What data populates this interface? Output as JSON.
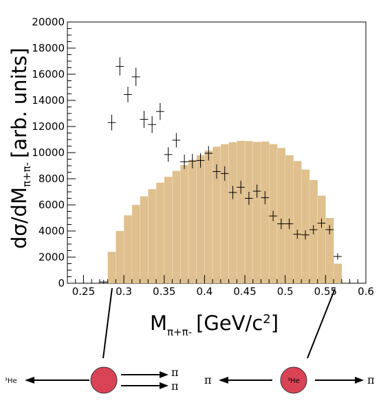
{
  "chart_data": {
    "type": "bar",
    "ylabel_main": "dσ/dM",
    "ylabel_sub": "π+π-",
    "ylabel_units": "[arb. units]",
    "xlabel_main": "M",
    "xlabel_sub": "π+π-",
    "xlabel_units": "[GeV/c",
    "xlabel_units_sup": "2",
    "xlabel_units_close": "]",
    "xlim": [
      0.23,
      0.6
    ],
    "ylim": [
      0,
      20000
    ],
    "x_ticks": [
      "0.25",
      "0.3",
      "0.35",
      "0.4",
      "0.45",
      "0.5",
      "0.55",
      "0.6"
    ],
    "y_ticks": [
      "0",
      "2000",
      "4000",
      "6000",
      "8000",
      "10000",
      "12000",
      "14000",
      "16000",
      "18000",
      "20000"
    ],
    "grid": false,
    "series": [
      {
        "kind": "histogram",
        "color": "#dfc08e",
        "bin_width": 0.01,
        "bin_lefts": [
          0.28,
          0.29,
          0.3,
          0.31,
          0.32,
          0.33,
          0.34,
          0.35,
          0.36,
          0.37,
          0.38,
          0.39,
          0.4,
          0.41,
          0.42,
          0.43,
          0.44,
          0.45,
          0.46,
          0.47,
          0.48,
          0.49,
          0.5,
          0.51,
          0.52,
          0.53,
          0.54,
          0.55,
          0.56
        ],
        "values": [
          2400,
          4000,
          5200,
          6000,
          6650,
          7200,
          7700,
          8150,
          8600,
          9050,
          9450,
          9800,
          10150,
          10450,
          10650,
          10800,
          10900,
          10880,
          10820,
          10850,
          10650,
          10350,
          9800,
          9350,
          8700,
          7900,
          6700,
          5000,
          1500
        ]
      },
      {
        "kind": "points_with_errors",
        "color": "#000000",
        "x": [
          0.275,
          0.285,
          0.295,
          0.305,
          0.315,
          0.325,
          0.335,
          0.345,
          0.355,
          0.365,
          0.375,
          0.385,
          0.395,
          0.405,
          0.415,
          0.425,
          0.435,
          0.445,
          0.455,
          0.465,
          0.475,
          0.485,
          0.495,
          0.505,
          0.515,
          0.525,
          0.535,
          0.545,
          0.555,
          0.565
        ],
        "y": [
          100,
          12300,
          16600,
          14450,
          15800,
          12550,
          12150,
          13150,
          9850,
          10950,
          9300,
          9350,
          9400,
          9950,
          8550,
          8400,
          6950,
          7350,
          6500,
          7050,
          6550,
          5150,
          4550,
          4550,
          3750,
          3700,
          4100,
          4600,
          4100,
          2050
        ],
        "yerr": [
          150,
          600,
          700,
          600,
          700,
          650,
          650,
          650,
          550,
          550,
          550,
          550,
          550,
          550,
          550,
          550,
          500,
          500,
          500,
          500,
          500,
          400,
          400,
          400,
          350,
          350,
          350,
          350,
          350,
          250
        ],
        "xerr": 0.005
      }
    ]
  },
  "diagram": {
    "left_label": "³He",
    "center_pion_top": "π",
    "center_pion_bottom": "π",
    "right_pion_left": "π",
    "right_nucleus": "³He",
    "right_pion_right": "π",
    "nucleus_color": "#d94355"
  }
}
